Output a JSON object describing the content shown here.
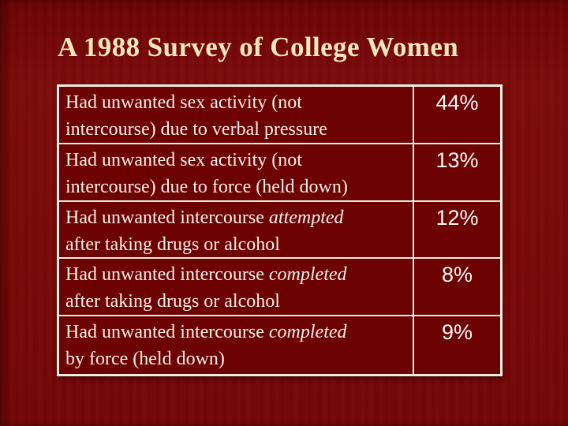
{
  "slide": {
    "title": "A 1988 Survey of College Women",
    "colors": {
      "background": "#7a0909",
      "cell_background": "#6d0202",
      "border": "#f3efe3",
      "title_text": "#f1e7bd",
      "body_text": "#f6f1e7",
      "percent_text": "#faf8f4"
    }
  },
  "table": {
    "rows": [
      {
        "line1": "Had unwanted sex activity (not",
        "line1_italic": "",
        "line2": "intercourse) due to verbal pressure",
        "percent": "44%"
      },
      {
        "line1": "Had unwanted sex activity (not",
        "line1_italic": "",
        "line2": "intercourse) due to force (held down)",
        "percent": "13%"
      },
      {
        "line1": "Had unwanted intercourse ",
        "line1_italic": "attempted",
        "line2": "after taking drugs or alcohol",
        "percent": "12%"
      },
      {
        "line1": "Had unwanted intercourse ",
        "line1_italic": "completed",
        "line2": "after taking drugs or alcohol",
        "percent": "8%"
      },
      {
        "line1": "Had unwanted intercourse ",
        "line1_italic": "completed",
        "line2": "by force (held down)",
        "percent": "9%"
      }
    ]
  }
}
